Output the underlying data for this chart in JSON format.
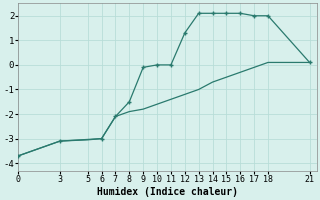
{
  "line1_x": [
    0,
    3,
    6,
    7,
    8,
    9,
    10,
    11,
    12,
    13,
    14,
    15,
    16,
    17,
    18,
    21
  ],
  "line1_y": [
    -3.7,
    -3.1,
    -3.0,
    -2.1,
    -1.5,
    -0.1,
    0.0,
    0.0,
    1.3,
    2.1,
    2.1,
    2.1,
    2.1,
    2.0,
    2.0,
    0.1
  ],
  "line2_x": [
    0,
    3,
    5,
    6,
    7,
    8,
    9,
    10,
    11,
    12,
    13,
    14,
    15,
    16,
    17,
    18,
    21
  ],
  "line2_y": [
    -3.7,
    -3.1,
    -3.05,
    -3.0,
    -2.1,
    -1.9,
    -1.8,
    -1.6,
    -1.4,
    -1.2,
    -1.0,
    -0.7,
    -0.5,
    -0.3,
    -0.1,
    0.1,
    0.1
  ],
  "line_color": "#2a7a6e",
  "bg_color": "#d8f0ec",
  "grid_color": "#b8ddd8",
  "xlabel": "Humidex (Indice chaleur)",
  "xlabel_fontsize": 7,
  "xticks": [
    0,
    3,
    5,
    6,
    7,
    8,
    9,
    10,
    11,
    12,
    13,
    14,
    15,
    16,
    17,
    18,
    21
  ],
  "yticks": [
    -4,
    -3,
    -2,
    -1,
    0,
    1,
    2
  ],
  "xlim": [
    0,
    21.5
  ],
  "ylim": [
    -4.3,
    2.5
  ],
  "figsize": [
    3.2,
    2.0
  ],
  "dpi": 100
}
